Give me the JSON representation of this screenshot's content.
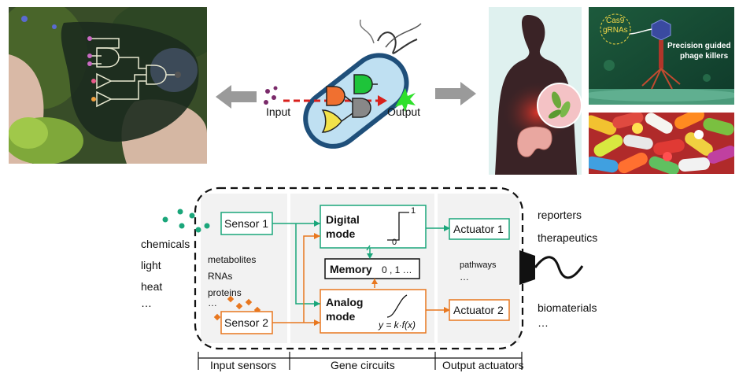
{
  "top": {
    "input_label": "Input",
    "output_label": "Output",
    "phage_cas9": "Cas9",
    "phage_grnas": "gRNAs",
    "phage_title_line1": "Precision guided",
    "phage_title_line2": "phage killers"
  },
  "inputs": {
    "items": [
      "chemicals",
      "light",
      "heat",
      "…"
    ]
  },
  "sensors": {
    "sensor1": "Sensor 1",
    "sensor2": "Sensor 2",
    "molecules": [
      "metabolites",
      "RNAs",
      "proteins",
      "…"
    ]
  },
  "circuits": {
    "digital_line1": "Digital",
    "digital_line2": "mode",
    "digital_high": "1",
    "digital_low": "0",
    "memory_label": "Memory",
    "memory_values": "0 , 1 …",
    "analog_line1": "Analog",
    "analog_line2": "mode",
    "analog_formula": "y = k·f(x)"
  },
  "actuators": {
    "actuator1": "Actuator 1",
    "actuator2": "Actuator 2",
    "pathways": "pathways",
    "pathways_more": "…"
  },
  "outputs": {
    "items": [
      "reporters",
      "therapeutics",
      "biomaterials",
      "…"
    ]
  },
  "stages": {
    "input": "Input sensors",
    "circuits": "Gene circuits",
    "output": "Output actuators"
  },
  "colors": {
    "green": "#1aa67a",
    "orange": "#e8771f",
    "dash": "#111111"
  }
}
